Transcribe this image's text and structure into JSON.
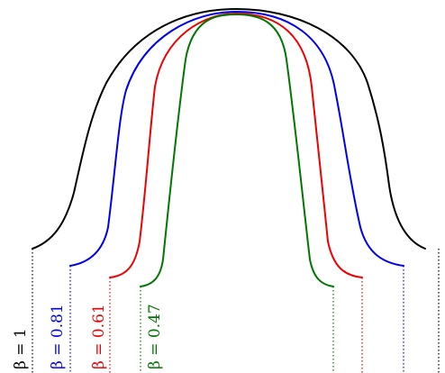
{
  "curves": [
    {
      "key": "beta-1",
      "label": "β = 1",
      "color": "#000000"
    },
    {
      "key": "beta-0-81",
      "label": "β = 0.81",
      "color": "#0000ee"
    },
    {
      "key": "beta-0-61",
      "label": "β = 0.61",
      "color": "#ee0000"
    },
    {
      "key": "beta-0-47",
      "label": "β = 0.47",
      "color": "#007700"
    }
  ]
}
